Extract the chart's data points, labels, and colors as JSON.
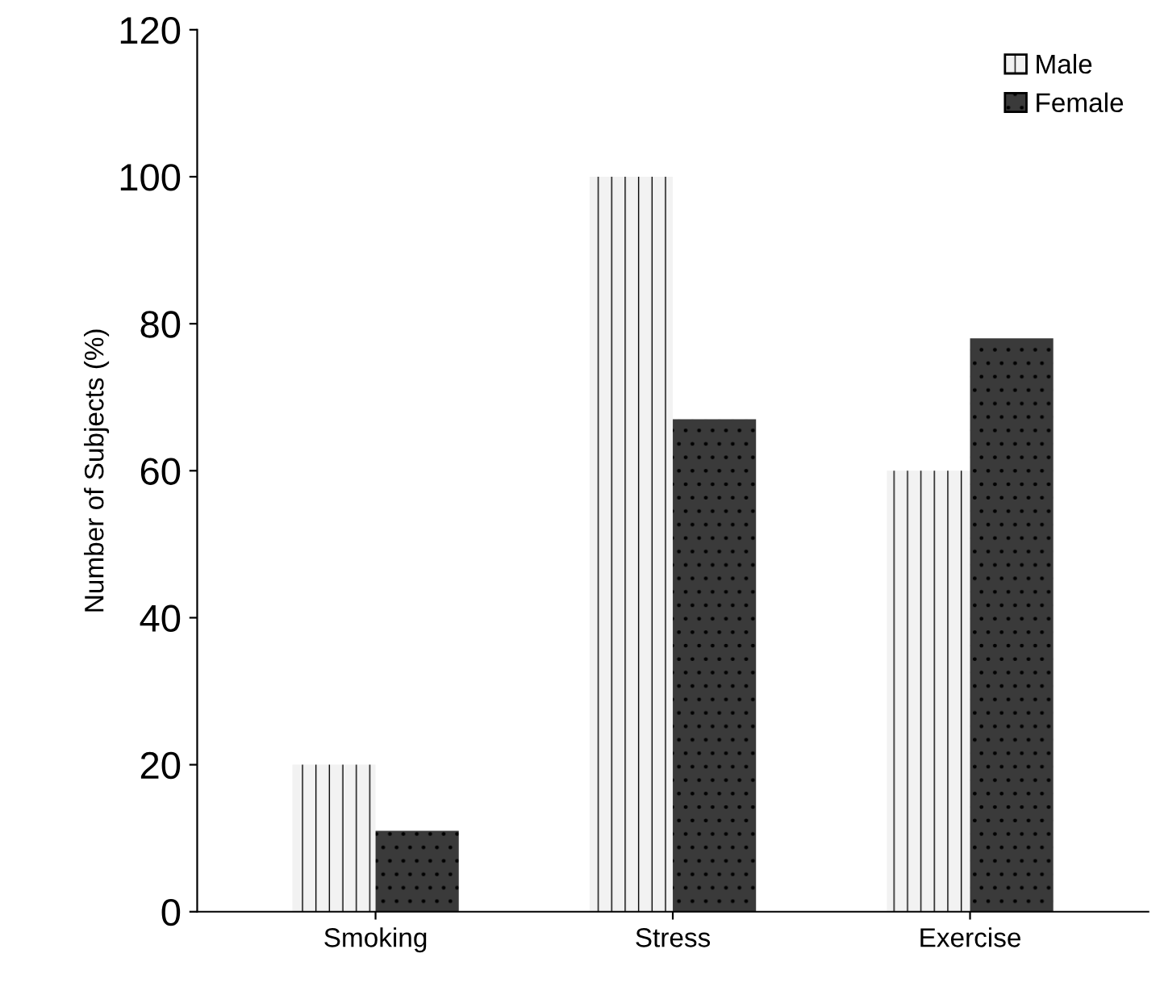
{
  "chart_data": {
    "type": "bar",
    "ylabel": "Number of Subjects (%)",
    "categories": [
      "Smoking",
      "Stress",
      "Exercise"
    ],
    "series": [
      {
        "name": "Male",
        "color": "#f2f2f2",
        "values": [
          20,
          100,
          60
        ]
      },
      {
        "name": "Female",
        "color": "#3a3a3a",
        "values": [
          11,
          67,
          78
        ]
      }
    ],
    "ylim": [
      0,
      120
    ],
    "yticks": [
      0,
      20,
      40,
      60,
      80,
      100,
      120
    ],
    "grid": false,
    "legend": "top right"
  }
}
